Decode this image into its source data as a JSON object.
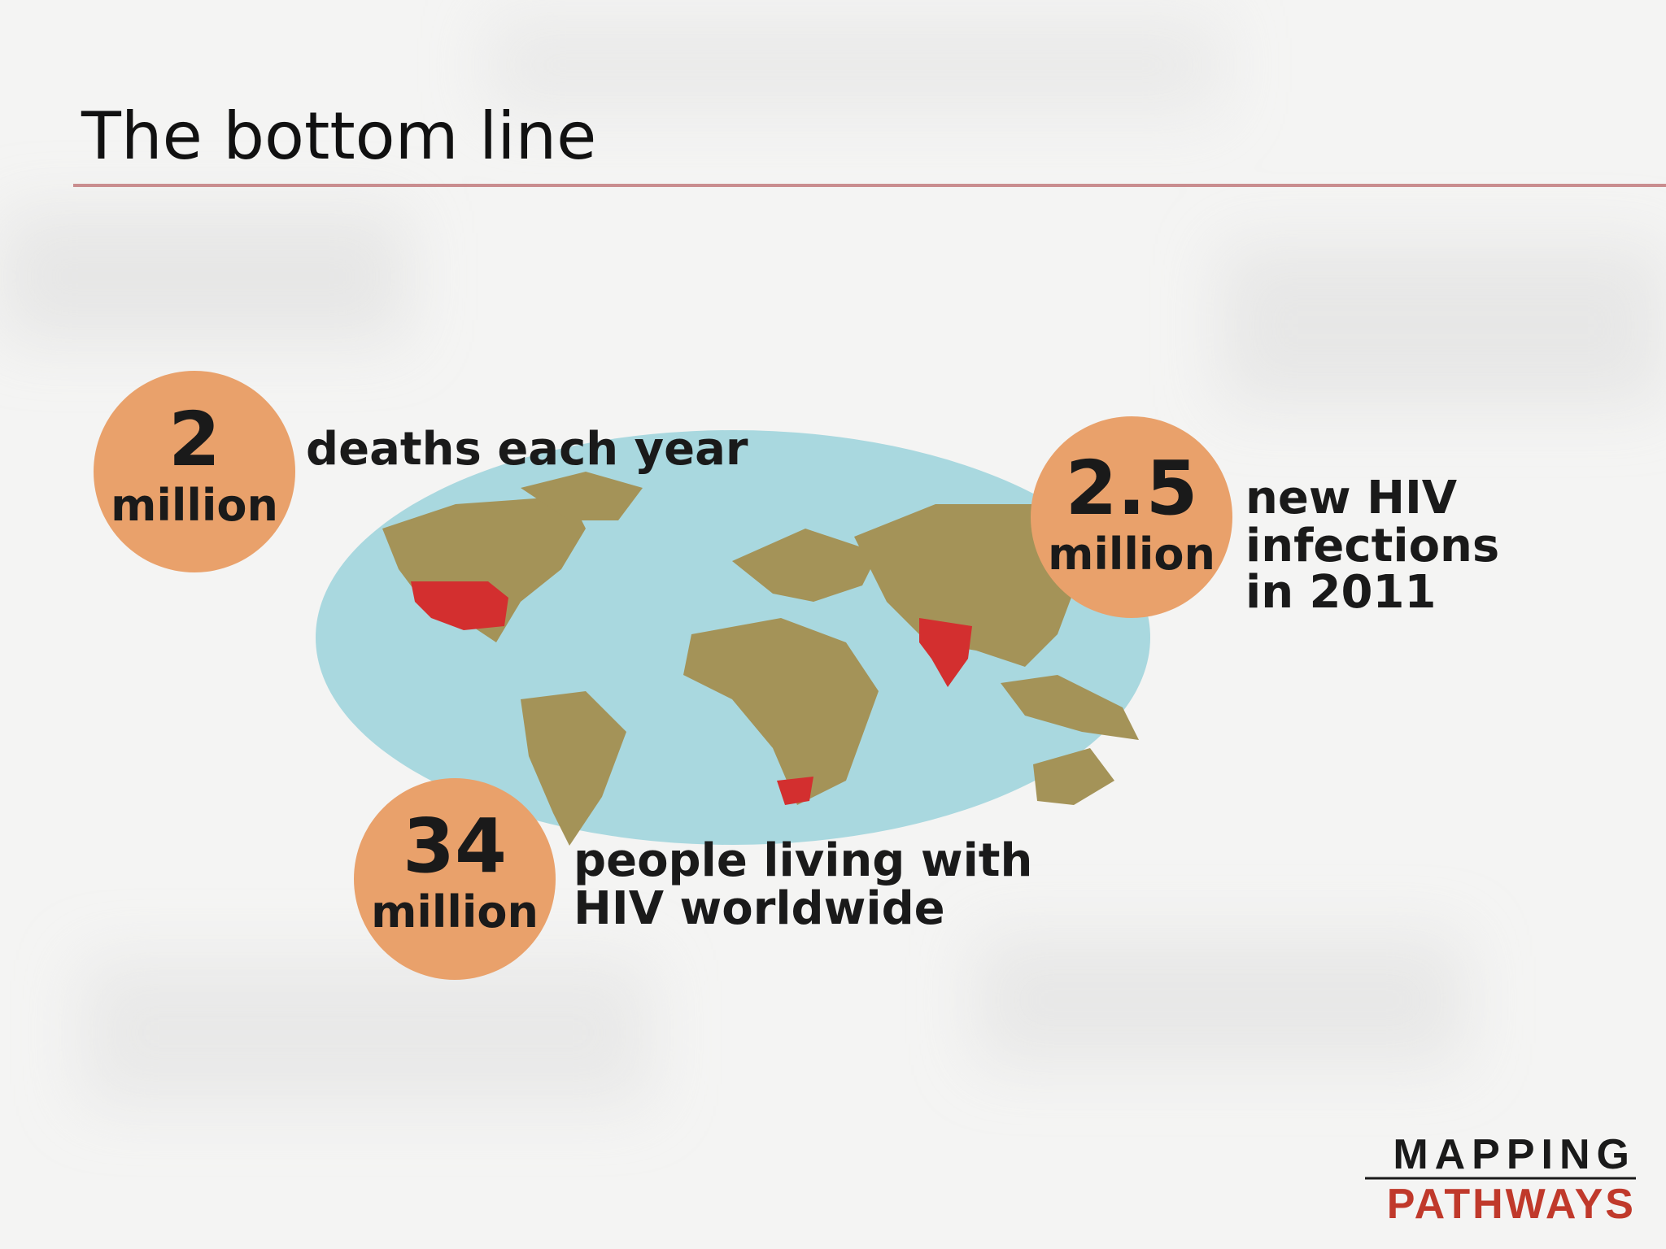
{
  "header": {
    "title": "The bottom line"
  },
  "stats": [
    {
      "number": "2",
      "unit": "million",
      "lines": [
        "deaths each year"
      ]
    },
    {
      "number": "2.5",
      "unit": "million",
      "lines": [
        "new HIV",
        "infections",
        "in 2011"
      ]
    },
    {
      "number": "34",
      "unit": "million",
      "lines": [
        "people living with",
        "HIV worldwide"
      ]
    }
  ],
  "logo": {
    "line1": "MAPPING",
    "line2": "PATHWAYS"
  }
}
